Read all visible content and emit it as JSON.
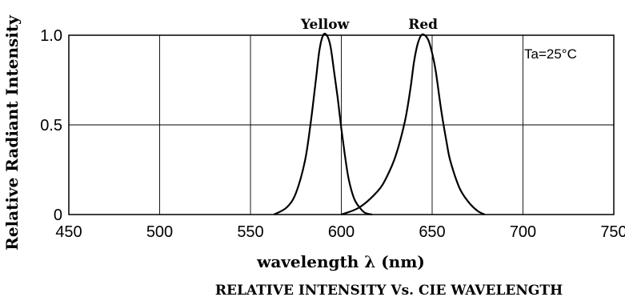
{
  "chart_data": {
    "type": "line",
    "title": "RELATIVE INTENSITY Vs. CIE WAVELENGTH",
    "xlabel": "wavelength λ (nm)",
    "ylabel": "Relative Radiant Intensity",
    "annotation": "Ta=25°C",
    "xlim": [
      450,
      750
    ],
    "ylim": [
      0,
      1.0
    ],
    "x_ticks": [
      450,
      500,
      550,
      600,
      650,
      700,
      750
    ],
    "x_tick_labels": [
      "450",
      "500",
      "550",
      "600",
      "650",
      "700",
      "750"
    ],
    "y_ticks": [
      0,
      0.5,
      1.0
    ],
    "y_tick_labels": [
      "0",
      "0.5",
      "1.0"
    ],
    "grid": true,
    "series": [
      {
        "name": "Yellow",
        "color": "#000000",
        "x": [
          563,
          570,
          575,
          580,
          583,
          586,
          588,
          590,
          592,
          594,
          596,
          598,
          600,
          602,
          604,
          607,
          610,
          613,
          617
        ],
        "y": [
          0.0,
          0.04,
          0.12,
          0.3,
          0.5,
          0.75,
          0.92,
          1.0,
          1.0,
          0.94,
          0.8,
          0.65,
          0.48,
          0.33,
          0.2,
          0.09,
          0.04,
          0.01,
          0.0
        ]
      },
      {
        "name": "Red",
        "color": "#000000",
        "x": [
          600,
          610,
          620,
          625,
          630,
          635,
          638,
          640,
          642,
          644,
          646,
          648,
          650,
          652,
          655,
          658,
          660,
          665,
          670,
          675,
          679
        ],
        "y": [
          0.0,
          0.04,
          0.13,
          0.21,
          0.33,
          0.52,
          0.7,
          0.85,
          0.95,
          1.0,
          1.0,
          0.97,
          0.9,
          0.8,
          0.58,
          0.4,
          0.3,
          0.15,
          0.07,
          0.02,
          0.0
        ]
      }
    ]
  }
}
